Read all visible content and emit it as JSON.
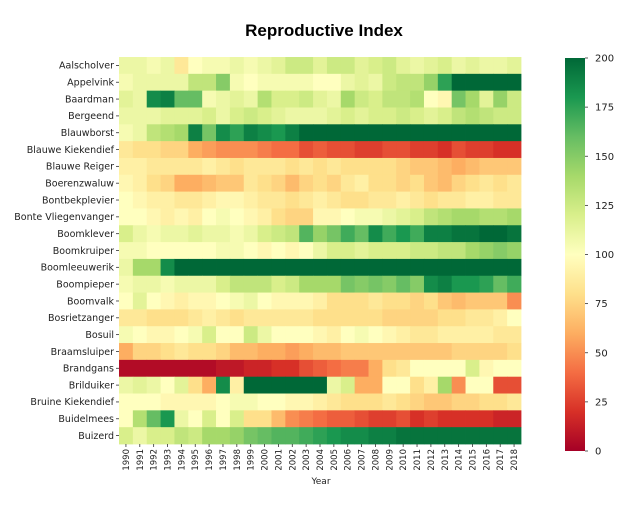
{
  "chart_data": {
    "type": "heatmap",
    "title": "Reproductive Index",
    "xlabel": "Year",
    "ylabel": "",
    "x": [
      "1990",
      "1991",
      "1992",
      "1993",
      "1994",
      "1995",
      "1996",
      "1997",
      "1998",
      "1999",
      "2000",
      "2001",
      "2002",
      "2003",
      "2004",
      "2005",
      "2006",
      "2007",
      "2008",
      "2009",
      "2010",
      "2011",
      "2012",
      "2013",
      "2014",
      "2015",
      "2016",
      "2017",
      "2018"
    ],
    "y": [
      "Aalscholver",
      "Appelvink",
      "Baardman",
      "Bergeend",
      "Blauwborst",
      "Blauwe Kiekendief",
      "Blauwe Reiger",
      "Boerenzwaluw",
      "Bontbekplevier",
      "Bonte Vliegenvanger",
      "Boomklever",
      "Boomkruiper",
      "Boomleeuwerik",
      "Boompieper",
      "Boomvalk",
      "Bosrietzanger",
      "Bosuil",
      "Braamsluiper",
      "Brandgans",
      "Brilduiker",
      "Bruine Kiekendief",
      "Buidelmees",
      "Buizerd"
    ],
    "values": [
      [
        110,
        110,
        105,
        110,
        85,
        100,
        105,
        105,
        110,
        105,
        110,
        115,
        125,
        125,
        115,
        125,
        125,
        115,
        120,
        125,
        115,
        110,
        115,
        120,
        110,
        115,
        110,
        110,
        115
      ],
      [
        105,
        110,
        110,
        110,
        110,
        130,
        130,
        150,
        105,
        100,
        105,
        105,
        105,
        105,
        100,
        100,
        110,
        115,
        110,
        125,
        130,
        130,
        145,
        175,
        200,
        200,
        200,
        200,
        200
      ],
      [
        115,
        110,
        185,
        190,
        160,
        160,
        105,
        110,
        115,
        110,
        135,
        120,
        120,
        125,
        115,
        110,
        140,
        125,
        120,
        130,
        130,
        135,
        100,
        95,
        155,
        140,
        115,
        145,
        125
      ],
      [
        110,
        110,
        110,
        115,
        115,
        115,
        120,
        110,
        120,
        125,
        120,
        115,
        110,
        110,
        110,
        115,
        120,
        115,
        120,
        120,
        125,
        120,
        115,
        120,
        130,
        135,
        130,
        125,
        125
      ],
      [
        105,
        110,
        130,
        135,
        140,
        190,
        155,
        185,
        175,
        190,
        185,
        180,
        190,
        200,
        200,
        200,
        200,
        200,
        200,
        200,
        200,
        200,
        200,
        200,
        200,
        200,
        200,
        200,
        200
      ],
      [
        85,
        80,
        80,
        75,
        75,
        60,
        55,
        50,
        50,
        50,
        45,
        40,
        40,
        30,
        35,
        30,
        30,
        25,
        25,
        30,
        30,
        25,
        25,
        20,
        30,
        25,
        25,
        20,
        20
      ],
      [
        90,
        90,
        85,
        85,
        85,
        85,
        90,
        85,
        80,
        85,
        85,
        85,
        80,
        85,
        80,
        85,
        80,
        80,
        80,
        80,
        75,
        70,
        70,
        65,
        60,
        65,
        70,
        70,
        70
      ],
      [
        95,
        90,
        80,
        75,
        60,
        60,
        65,
        70,
        70,
        85,
        80,
        75,
        65,
        75,
        80,
        75,
        85,
        90,
        80,
        80,
        75,
        80,
        70,
        65,
        75,
        80,
        85,
        80,
        85
      ],
      [
        100,
        95,
        90,
        90,
        85,
        85,
        90,
        95,
        95,
        90,
        85,
        85,
        80,
        85,
        90,
        85,
        80,
        80,
        85,
        85,
        90,
        85,
        80,
        85,
        85,
        90,
        90,
        85,
        85
      ],
      [
        100,
        100,
        95,
        90,
        95,
        90,
        100,
        105,
        100,
        95,
        90,
        80,
        75,
        75,
        95,
        95,
        100,
        105,
        105,
        110,
        115,
        120,
        130,
        135,
        140,
        140,
        135,
        135,
        140
      ],
      [
        120,
        110,
        105,
        110,
        110,
        115,
        110,
        110,
        105,
        110,
        120,
        125,
        130,
        165,
        145,
        155,
        170,
        160,
        185,
        170,
        180,
        170,
        190,
        190,
        195,
        195,
        200,
        200,
        195
      ],
      [
        105,
        105,
        100,
        100,
        100,
        100,
        100,
        105,
        105,
        100,
        95,
        100,
        95,
        100,
        110,
        120,
        120,
        115,
        120,
        120,
        120,
        125,
        125,
        130,
        130,
        140,
        145,
        150,
        145
      ],
      [
        110,
        140,
        140,
        185,
        200,
        200,
        200,
        200,
        200,
        200,
        200,
        200,
        200,
        200,
        200,
        200,
        200,
        200,
        200,
        200,
        200,
        200,
        200,
        200,
        200,
        200,
        200,
        200,
        200
      ],
      [
        105,
        110,
        110,
        105,
        110,
        110,
        110,
        120,
        130,
        130,
        130,
        120,
        125,
        140,
        140,
        140,
        155,
        150,
        155,
        150,
        160,
        150,
        185,
        190,
        180,
        180,
        175,
        160,
        170
      ],
      [
        100,
        115,
        100,
        95,
        90,
        95,
        95,
        100,
        105,
        110,
        100,
        95,
        95,
        95,
        90,
        80,
        80,
        80,
        85,
        80,
        80,
        75,
        80,
        70,
        65,
        70,
        70,
        70,
        50
      ],
      [
        85,
        85,
        80,
        80,
        80,
        85,
        90,
        85,
        80,
        85,
        85,
        85,
        85,
        85,
        80,
        80,
        80,
        80,
        80,
        75,
        75,
        75,
        75,
        80,
        80,
        85,
        85,
        90,
        100
      ],
      [
        105,
        100,
        95,
        95,
        100,
        105,
        120,
        100,
        100,
        125,
        110,
        100,
        100,
        100,
        95,
        90,
        100,
        105,
        100,
        95,
        90,
        85,
        85,
        90,
        90,
        90,
        90,
        85,
        85
      ],
      [
        60,
        75,
        75,
        80,
        85,
        80,
        80,
        75,
        65,
        65,
        60,
        60,
        55,
        60,
        65,
        65,
        70,
        70,
        70,
        70,
        70,
        70,
        70,
        70,
        75,
        75,
        75,
        75,
        80
      ],
      [
        5,
        5,
        5,
        5,
        5,
        5,
        5,
        10,
        10,
        15,
        15,
        20,
        20,
        30,
        35,
        40,
        45,
        45,
        60,
        80,
        85,
        100,
        100,
        100,
        100,
        120,
        95,
        100,
        100
      ],
      [
        110,
        115,
        110,
        100,
        115,
        80,
        60,
        185,
        90,
        200,
        200,
        200,
        200,
        200,
        200,
        110,
        120,
        60,
        60,
        100,
        100,
        80,
        90,
        140,
        50,
        100,
        100,
        30,
        30
      ],
      [
        100,
        100,
        100,
        95,
        95,
        95,
        95,
        100,
        105,
        105,
        100,
        100,
        95,
        95,
        90,
        85,
        80,
        80,
        80,
        85,
        80,
        75,
        70,
        70,
        75,
        75,
        80,
        80,
        85
      ],
      [
        100,
        135,
        160,
        180,
        110,
        100,
        120,
        100,
        120,
        80,
        80,
        65,
        50,
        45,
        40,
        35,
        35,
        30,
        25,
        25,
        30,
        20,
        25,
        20,
        20,
        20,
        20,
        15,
        15
      ],
      [
        120,
        110,
        120,
        120,
        130,
        125,
        140,
        140,
        145,
        155,
        160,
        165,
        165,
        170,
        175,
        180,
        185,
        185,
        190,
        190,
        195,
        195,
        195,
        195,
        195,
        195,
        195,
        195,
        195
      ]
    ],
    "vmin": 0,
    "vmax": 200,
    "colormap": "RdYlGn",
    "colorbar_ticks": [
      0,
      25,
      50,
      75,
      100,
      125,
      150,
      175,
      200
    ],
    "colors": [
      "#a50026",
      "#d73027",
      "#f46d43",
      "#fdae61",
      "#fee08b",
      "#ffffbf",
      "#d9ef8b",
      "#a6d96a",
      "#66bd63",
      "#1a9850",
      "#006837"
    ]
  }
}
